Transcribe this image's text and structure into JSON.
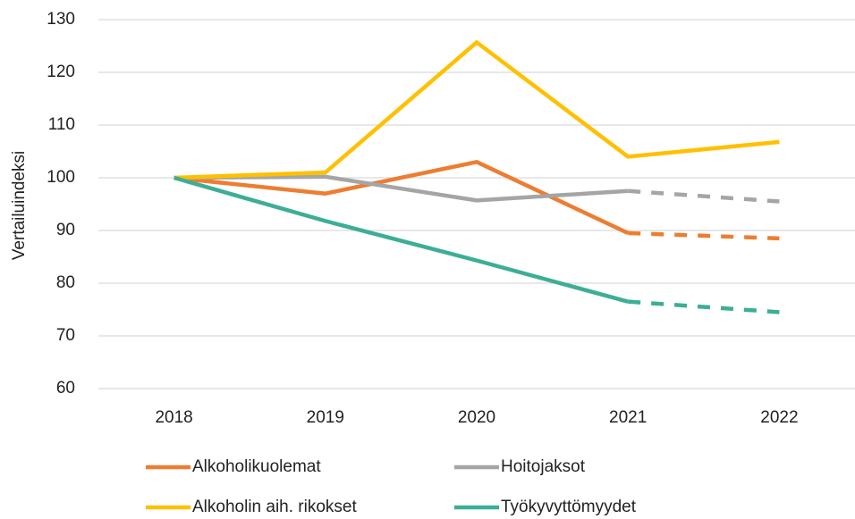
{
  "chart_data": {
    "type": "line",
    "y_label": "Vertailuindeksi",
    "categories": [
      "2018",
      "2019",
      "2020",
      "2021",
      "2022"
    ],
    "series": [
      {
        "name": "Alkoholikuolemat",
        "color": "#ed7d31",
        "values": [
          100,
          97,
          103,
          89.5,
          88.5
        ],
        "dashed_from": 3
      },
      {
        "name": "Hoitojaksot",
        "color": "#a5a5a5",
        "values": [
          100,
          100.2,
          95.7,
          97.5,
          95.5
        ],
        "dashed_from": 3
      },
      {
        "name": "Alkoholin aih. rikokset",
        "color": "#ffc000",
        "values": [
          100,
          101,
          125.7,
          104,
          106.8
        ]
      },
      {
        "name": "Työkyvyttömyydet",
        "color": "#3dae96",
        "values": [
          100,
          91.8,
          84.3,
          76.5,
          74.5
        ],
        "dashed_from": 3
      }
    ],
    "ylim": [
      60,
      130
    ],
    "yticks": [
      60,
      70,
      80,
      90,
      100,
      110,
      120,
      130
    ],
    "grid": true,
    "legend": "bottom"
  }
}
